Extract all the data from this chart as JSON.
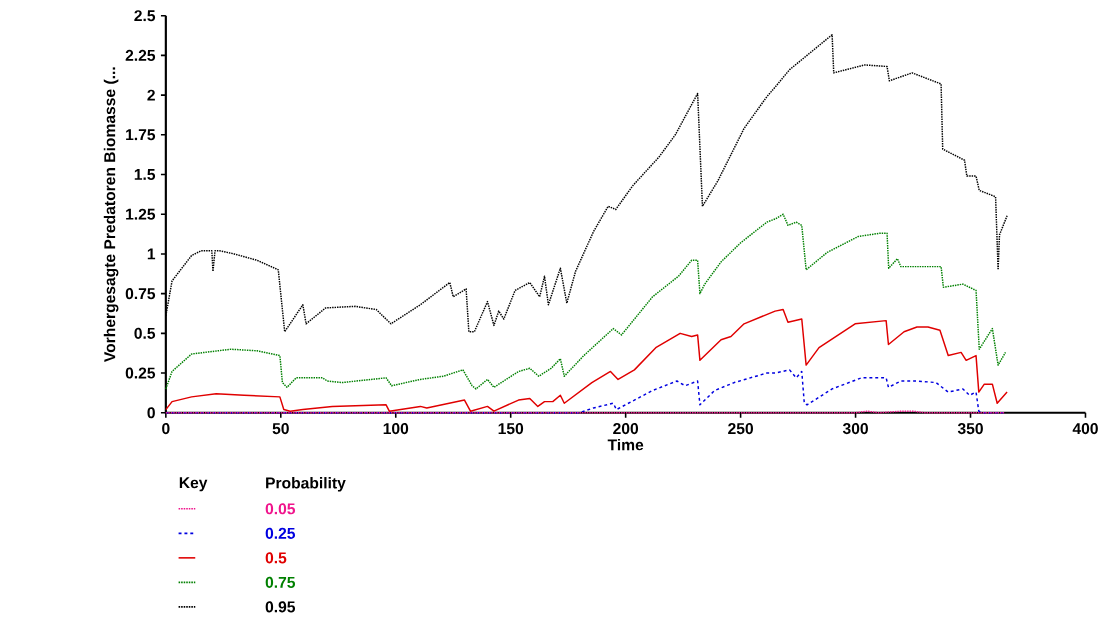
{
  "chart_data": {
    "type": "line",
    "xlabel": "Time",
    "ylabel": "Vorhergesagte Predatoren Biomasse (...",
    "legend_title": "Probability",
    "annotations": [
      "Key"
    ],
    "xlim": [
      0,
      400
    ],
    "xticks": [
      0,
      50,
      100,
      150,
      200,
      250,
      300,
      350,
      400
    ],
    "ylim": [
      0,
      2.5
    ],
    "yticks": [
      0,
      0.25,
      0.5,
      0.75,
      1,
      1.25,
      1.5,
      1.75,
      2,
      2.25,
      2.5
    ],
    "grid": false,
    "legend": "bottom left",
    "marker": "none",
    "series": [
      {
        "name": "0.05",
        "color": "#f0148c",
        "line_style": "dotted",
        "x": [
          0,
          300,
          305,
          310,
          320,
          325,
          330,
          340,
          365
        ],
        "values": [
          0,
          0,
          0.01,
          0,
          0.01,
          0.01,
          0,
          0,
          0
        ]
      },
      {
        "name": "0.25",
        "color": "#0000e0",
        "line_style": "dashed",
        "x": [
          0,
          179.8,
          186,
          194.6,
          196,
          211.7,
          222.3,
          225.9,
          231.3,
          232.3,
          238.7,
          247.2,
          261.4,
          265,
          271.3,
          274.2,
          276.6,
          277.7,
          278.9,
          289.8,
          302.6,
          313.3,
          314.3,
          319.7,
          326.7,
          335,
          340.3,
          346.7,
          349.6,
          352.4,
          353.6,
          355,
          365
        ],
        "values": [
          0,
          0,
          0.03,
          0.06,
          0.02,
          0.14,
          0.2,
          0.17,
          0.2,
          0.05,
          0.14,
          0.19,
          0.25,
          0.25,
          0.27,
          0.22,
          0.26,
          0.06,
          0.05,
          0.15,
          0.22,
          0.22,
          0.16,
          0.2,
          0.2,
          0.19,
          0.13,
          0.15,
          0.11,
          0.13,
          0.01,
          0,
          0
        ]
      },
      {
        "name": "0.5",
        "color": "#e00000",
        "line_style": "solid",
        "x": [
          0,
          2.7,
          11.2,
          21.9,
          34,
          49.6,
          51.3,
          54.1,
          59.6,
          72.4,
          95.8,
          97.2,
          110.7,
          113.5,
          129.9,
          132.5,
          139.9,
          142.7,
          153.4,
          158.3,
          161.8,
          164.7,
          168.3,
          171.6,
          173.3,
          185.3,
          193.4,
          196.7,
          203.8,
          213.1,
          223.7,
          228.7,
          231.3,
          232.3,
          241.5,
          245.8,
          251.5,
          265,
          268.5,
          270.6,
          276.6,
          278.5,
          284.1,
          299.8,
          313.3,
          314.3,
          321.1,
          326.7,
          331.5,
          336.7,
          340.3,
          345.9,
          348.1,
          352.4,
          353.6,
          356,
          359.5,
          361.6,
          365.9
        ],
        "values": [
          0.02,
          0.07,
          0.1,
          0.12,
          0.11,
          0.1,
          0.02,
          0.01,
          0.02,
          0.04,
          0.05,
          0.01,
          0.04,
          0.03,
          0.08,
          0.01,
          0.04,
          0.01,
          0.08,
          0.09,
          0.04,
          0.07,
          0.07,
          0.11,
          0.06,
          0.19,
          0.26,
          0.21,
          0.27,
          0.41,
          0.5,
          0.48,
          0.49,
          0.33,
          0.46,
          0.48,
          0.56,
          0.64,
          0.65,
          0.57,
          0.59,
          0.3,
          0.41,
          0.56,
          0.58,
          0.43,
          0.51,
          0.54,
          0.54,
          0.52,
          0.36,
          0.38,
          0.33,
          0.36,
          0.13,
          0.18,
          0.18,
          0.06,
          0.13
        ]
      },
      {
        "name": "0.75",
        "color": "#008000",
        "line_style": "dotted",
        "x": [
          0,
          2.7,
          11.2,
          28.3,
          39.7,
          49.6,
          50.7,
          52.7,
          56.7,
          68.1,
          70.2,
          76.6,
          95.8,
          98.2,
          110.7,
          120.7,
          129.2,
          133.2,
          134.9,
          139.9,
          142.7,
          153.4,
          158.3,
          162.2,
          167.6,
          171.6,
          173.3,
          181.8,
          194.6,
          198.2,
          211.7,
          223,
          228.7,
          231.3,
          232.3,
          234.4,
          241.5,
          250,
          261.4,
          265,
          268.5,
          270.6,
          274.2,
          276.6,
          278.5,
          287.7,
          301.2,
          310.4,
          313.7,
          314.4,
          318.2,
          319.7,
          337.2,
          338.2,
          346.7,
          352.4,
          353.8,
          359.5,
          362,
          365.2
        ],
        "values": [
          0.15,
          0.26,
          0.37,
          0.4,
          0.39,
          0.36,
          0.19,
          0.16,
          0.22,
          0.22,
          0.2,
          0.19,
          0.22,
          0.17,
          0.21,
          0.23,
          0.27,
          0.17,
          0.15,
          0.21,
          0.16,
          0.26,
          0.28,
          0.23,
          0.28,
          0.34,
          0.23,
          0.36,
          0.53,
          0.49,
          0.73,
          0.86,
          0.96,
          0.96,
          0.75,
          0.81,
          0.95,
          1.07,
          1.2,
          1.22,
          1.25,
          1.18,
          1.2,
          1.18,
          0.9,
          1.01,
          1.11,
          1.13,
          1.13,
          0.91,
          0.97,
          0.92,
          0.92,
          0.79,
          0.81,
          0.77,
          0.4,
          0.53,
          0.3,
          0.38
        ]
      },
      {
        "name": "0.95",
        "color": "#000000",
        "line_style": "dotted",
        "x": [
          0,
          2.7,
          11.2,
          15.4,
          20,
          20.5,
          21.4,
          23.3,
          29.7,
          39.7,
          48.9,
          51.7,
          59.6,
          61,
          69.5,
          82.3,
          91.5,
          97.9,
          110.7,
          123.5,
          125,
          130.6,
          131.8,
          134.2,
          139.9,
          142.7,
          144.8,
          147,
          151.9,
          158.3,
          162.6,
          164.7,
          166.4,
          171.6,
          174.4,
          178.2,
          186,
          192.4,
          195.7,
          203.1,
          214.5,
          221.6,
          231.3,
          233.4,
          240.1,
          251.5,
          261.4,
          265,
          271.3,
          289.8,
          290.5,
          304,
          313.7,
          314.7,
          324.6,
          337.2,
          337.9,
          347.4,
          348.4,
          352.4,
          353.8,
          360.9,
          362,
          362.6,
          365.9
        ],
        "values": [
          0.61,
          0.83,
          0.99,
          1.02,
          1.02,
          0.89,
          1.02,
          1.02,
          1.0,
          0.96,
          0.9,
          0.51,
          0.68,
          0.56,
          0.66,
          0.67,
          0.65,
          0.56,
          0.68,
          0.82,
          0.73,
          0.78,
          0.51,
          0.51,
          0.7,
          0.55,
          0.64,
          0.59,
          0.77,
          0.82,
          0.73,
          0.86,
          0.68,
          0.91,
          0.69,
          0.89,
          1.14,
          1.3,
          1.28,
          1.43,
          1.61,
          1.75,
          2.01,
          1.3,
          1.46,
          1.79,
          1.99,
          2.05,
          2.16,
          2.38,
          2.14,
          2.19,
          2.18,
          2.09,
          2.14,
          2.07,
          1.66,
          1.59,
          1.49,
          1.49,
          1.4,
          1.36,
          0.9,
          1.12,
          1.24
        ]
      }
    ]
  }
}
